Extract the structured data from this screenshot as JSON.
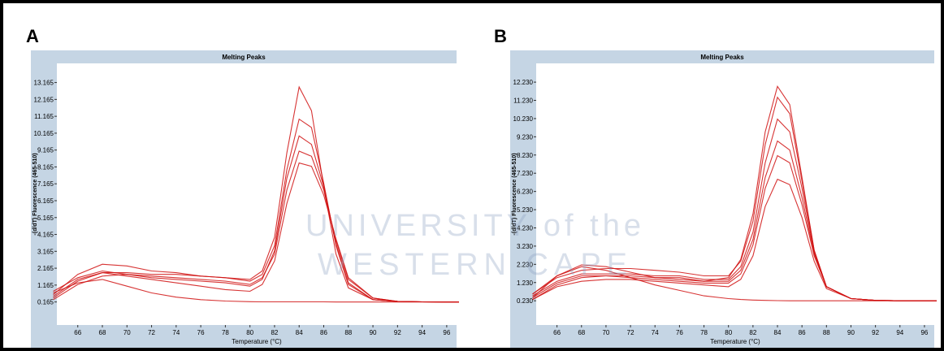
{
  "watermark": [
    "UNIVERSITY of the",
    "WESTERN CAPE"
  ],
  "chart_data": [
    {
      "type": "line",
      "label": "A",
      "title": "Melting Peaks",
      "x_label": "Temperature (°C)",
      "y_label": "-(d/dT) Fluorescence (465-510)",
      "x": [
        64,
        66,
        68,
        70,
        72,
        74,
        76,
        78,
        80,
        81,
        82,
        83,
        84,
        85,
        86,
        87,
        88,
        90,
        92,
        94,
        96,
        97
      ],
      "xlim": [
        64.3,
        96.8
      ],
      "xticks": [
        66,
        68,
        70,
        72,
        74,
        76,
        78,
        80,
        82,
        84,
        86,
        88,
        90,
        92,
        94,
        96
      ],
      "ylim": [
        -1.2,
        14.3
      ],
      "yticks": [
        0.165,
        1.165,
        2.165,
        3.165,
        4.165,
        5.165,
        6.165,
        7.165,
        8.165,
        9.165,
        10.165,
        11.165,
        12.165,
        13.165
      ],
      "series": [
        {
          "color": "#d01010",
          "values": [
            0.6,
            1.8,
            2.4,
            2.3,
            2.0,
            1.9,
            1.7,
            1.6,
            1.5,
            2.0,
            4.0,
            9.0,
            12.9,
            11.5,
            7.0,
            3.0,
            1.0,
            0.3,
            0.2,
            0.17,
            0.16,
            0.16
          ]
        },
        {
          "color": "#d01010",
          "values": [
            0.4,
            1.4,
            1.9,
            1.9,
            1.8,
            1.8,
            1.7,
            1.6,
            1.4,
            1.8,
            3.5,
            8.0,
            11.0,
            10.5,
            7.2,
            3.5,
            1.2,
            0.3,
            0.2,
            0.17,
            0.16,
            0.16
          ]
        },
        {
          "color": "#d01010",
          "values": [
            0.8,
            1.6,
            2.0,
            1.8,
            1.6,
            1.5,
            1.4,
            1.3,
            1.1,
            1.5,
            3.2,
            7.5,
            10.0,
            9.5,
            7.0,
            3.6,
            1.3,
            0.3,
            0.2,
            0.17,
            0.16,
            0.16
          ]
        },
        {
          "color": "#d01010",
          "values": [
            0.3,
            1.2,
            1.7,
            1.8,
            1.7,
            1.6,
            1.5,
            1.4,
            1.2,
            1.6,
            3.0,
            6.8,
            9.1,
            8.8,
            6.8,
            3.8,
            1.5,
            0.4,
            0.2,
            0.17,
            0.16,
            0.16
          ]
        },
        {
          "color": "#d01010",
          "values": [
            0.5,
            1.5,
            1.9,
            1.7,
            1.5,
            1.3,
            1.1,
            0.9,
            0.8,
            1.2,
            2.6,
            6.0,
            8.4,
            8.2,
            6.5,
            3.9,
            1.6,
            0.4,
            0.2,
            0.17,
            0.16,
            0.16
          ]
        },
        {
          "color": "#d01010",
          "values": [
            0.7,
            1.3,
            1.5,
            1.1,
            0.7,
            0.45,
            0.3,
            0.22,
            0.18,
            0.17,
            0.17,
            0.17,
            0.17,
            0.17,
            0.17,
            0.16,
            0.16,
            0.16,
            0.16,
            0.16,
            0.16,
            0.16
          ]
        }
      ]
    },
    {
      "type": "line",
      "label": "B",
      "title": "Melting Peaks",
      "x_label": "Temperature (°C)",
      "y_label": "-(d/dT) Fluorescence (465-510)",
      "x": [
        64,
        66,
        68,
        70,
        72,
        74,
        76,
        78,
        80,
        81,
        82,
        83,
        84,
        85,
        86,
        87,
        88,
        90,
        92,
        94,
        96,
        97
      ],
      "xlim": [
        64.3,
        96.8
      ],
      "xticks": [
        66,
        68,
        70,
        72,
        74,
        76,
        78,
        80,
        82,
        84,
        86,
        88,
        90,
        92,
        94,
        96
      ],
      "ylim": [
        -1.1,
        13.26
      ],
      "yticks": [
        {
          "value": 0.23,
          "label": "0.230"
        },
        {
          "value": 1.23,
          "label": "1.230"
        },
        {
          "value": 2.23,
          "label": "2.230"
        },
        {
          "value": 3.23,
          "label": "3.230"
        },
        {
          "value": 4.23,
          "label": "4.230"
        },
        {
          "value": 5.23,
          "label": "5.230"
        },
        {
          "value": 6.23,
          "label": "6.230"
        },
        {
          "value": 7.23,
          "label": "7.230"
        },
        {
          "value": 8.23,
          "label": "8.230"
        },
        {
          "value": 9.23,
          "label": "9.230"
        },
        {
          "value": 10.23,
          "label": "10.230"
        },
        {
          "value": 11.23,
          "label": "11.230"
        },
        {
          "value": 12.23,
          "label": "12.230"
        }
      ],
      "series": [
        {
          "color": "#d01010",
          "values": [
            0.4,
            1.6,
            2.2,
            2.1,
            1.8,
            1.5,
            1.4,
            1.3,
            1.5,
            2.5,
            5.0,
            9.5,
            12.0,
            11.0,
            7.0,
            3.0,
            1.0,
            0.35,
            0.25,
            0.23,
            0.23,
            0.23
          ]
        },
        {
          "color": "#d01010",
          "values": [
            0.6,
            1.5,
            1.9,
            2.0,
            2.0,
            1.9,
            1.8,
            1.6,
            1.6,
            2.4,
            4.6,
            8.8,
            11.4,
            10.5,
            6.8,
            3.0,
            1.0,
            0.35,
            0.25,
            0.23,
            0.23,
            0.23
          ]
        },
        {
          "color": "#d01010",
          "values": [
            0.5,
            1.3,
            1.7,
            1.7,
            1.7,
            1.6,
            1.6,
            1.4,
            1.4,
            2.1,
            4.0,
            7.8,
            10.2,
            9.5,
            6.4,
            2.9,
            1.0,
            0.35,
            0.25,
            0.23,
            0.23,
            0.23
          ]
        },
        {
          "color": "#d01010",
          "values": [
            0.3,
            1.1,
            1.5,
            1.6,
            1.6,
            1.5,
            1.5,
            1.3,
            1.3,
            1.9,
            3.6,
            7.0,
            9.0,
            8.5,
            5.9,
            2.8,
            1.0,
            0.35,
            0.25,
            0.23,
            0.23,
            0.23
          ]
        },
        {
          "color": "#d01010",
          "values": [
            0.4,
            1.2,
            1.6,
            1.6,
            1.5,
            1.4,
            1.3,
            1.2,
            1.2,
            1.7,
            3.3,
            6.4,
            8.2,
            7.8,
            5.5,
            2.7,
            1.0,
            0.35,
            0.25,
            0.23,
            0.23,
            0.23
          ]
        },
        {
          "color": "#d01010",
          "values": [
            0.3,
            1.0,
            1.3,
            1.4,
            1.4,
            1.3,
            1.2,
            1.1,
            1.0,
            1.4,
            2.7,
            5.4,
            6.9,
            6.6,
            4.8,
            2.4,
            0.9,
            0.35,
            0.25,
            0.23,
            0.23,
            0.23
          ]
        },
        {
          "color": "#d01010",
          "values": [
            0.6,
            1.6,
            2.1,
            1.9,
            1.5,
            1.1,
            0.8,
            0.5,
            0.35,
            0.3,
            0.27,
            0.25,
            0.24,
            0.23,
            0.23,
            0.23,
            0.23,
            0.23,
            0.23,
            0.23,
            0.23,
            0.23
          ]
        }
      ]
    }
  ]
}
